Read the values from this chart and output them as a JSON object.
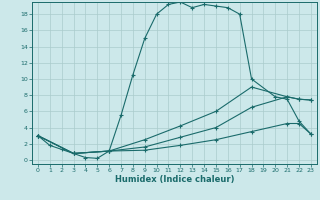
{
  "xlabel": "Humidex (Indice chaleur)",
  "bg_color": "#cce8ea",
  "grid_color": "#aacccc",
  "line_color": "#1a6b6b",
  "xlim": [
    -0.5,
    23.5
  ],
  "ylim": [
    -0.5,
    19.5
  ],
  "xticks": [
    0,
    1,
    2,
    3,
    4,
    5,
    6,
    7,
    8,
    9,
    10,
    11,
    12,
    13,
    14,
    15,
    16,
    17,
    18,
    19,
    20,
    21,
    22,
    23
  ],
  "yticks": [
    0,
    2,
    4,
    6,
    8,
    10,
    12,
    14,
    16,
    18
  ],
  "curve1_x": [
    0,
    1,
    2,
    3,
    4,
    5,
    6,
    7,
    8,
    9,
    10,
    11,
    12,
    13,
    14,
    15,
    16,
    17,
    18,
    20,
    21,
    22,
    23
  ],
  "curve1_y": [
    3.0,
    1.8,
    1.3,
    0.8,
    0.3,
    0.2,
    1.1,
    5.5,
    10.5,
    15.0,
    18.0,
    19.2,
    19.5,
    18.8,
    19.2,
    19.0,
    18.8,
    18.0,
    10.0,
    7.8,
    7.5,
    4.8,
    3.2
  ],
  "curve2_x": [
    0,
    3,
    6,
    9,
    12,
    15,
    18,
    21,
    22,
    23
  ],
  "curve2_y": [
    3.0,
    0.8,
    1.1,
    2.5,
    4.2,
    6.0,
    9.0,
    7.8,
    7.5,
    7.4
  ],
  "curve3_x": [
    0,
    3,
    6,
    9,
    12,
    15,
    18,
    21,
    22,
    23
  ],
  "curve3_y": [
    3.0,
    0.8,
    1.1,
    1.6,
    2.8,
    4.0,
    6.5,
    7.8,
    7.5,
    7.4
  ],
  "curve4_x": [
    0,
    3,
    6,
    9,
    12,
    15,
    18,
    21,
    22,
    23
  ],
  "curve4_y": [
    3.0,
    0.8,
    1.1,
    1.2,
    1.8,
    2.5,
    3.5,
    4.5,
    4.5,
    3.2
  ]
}
